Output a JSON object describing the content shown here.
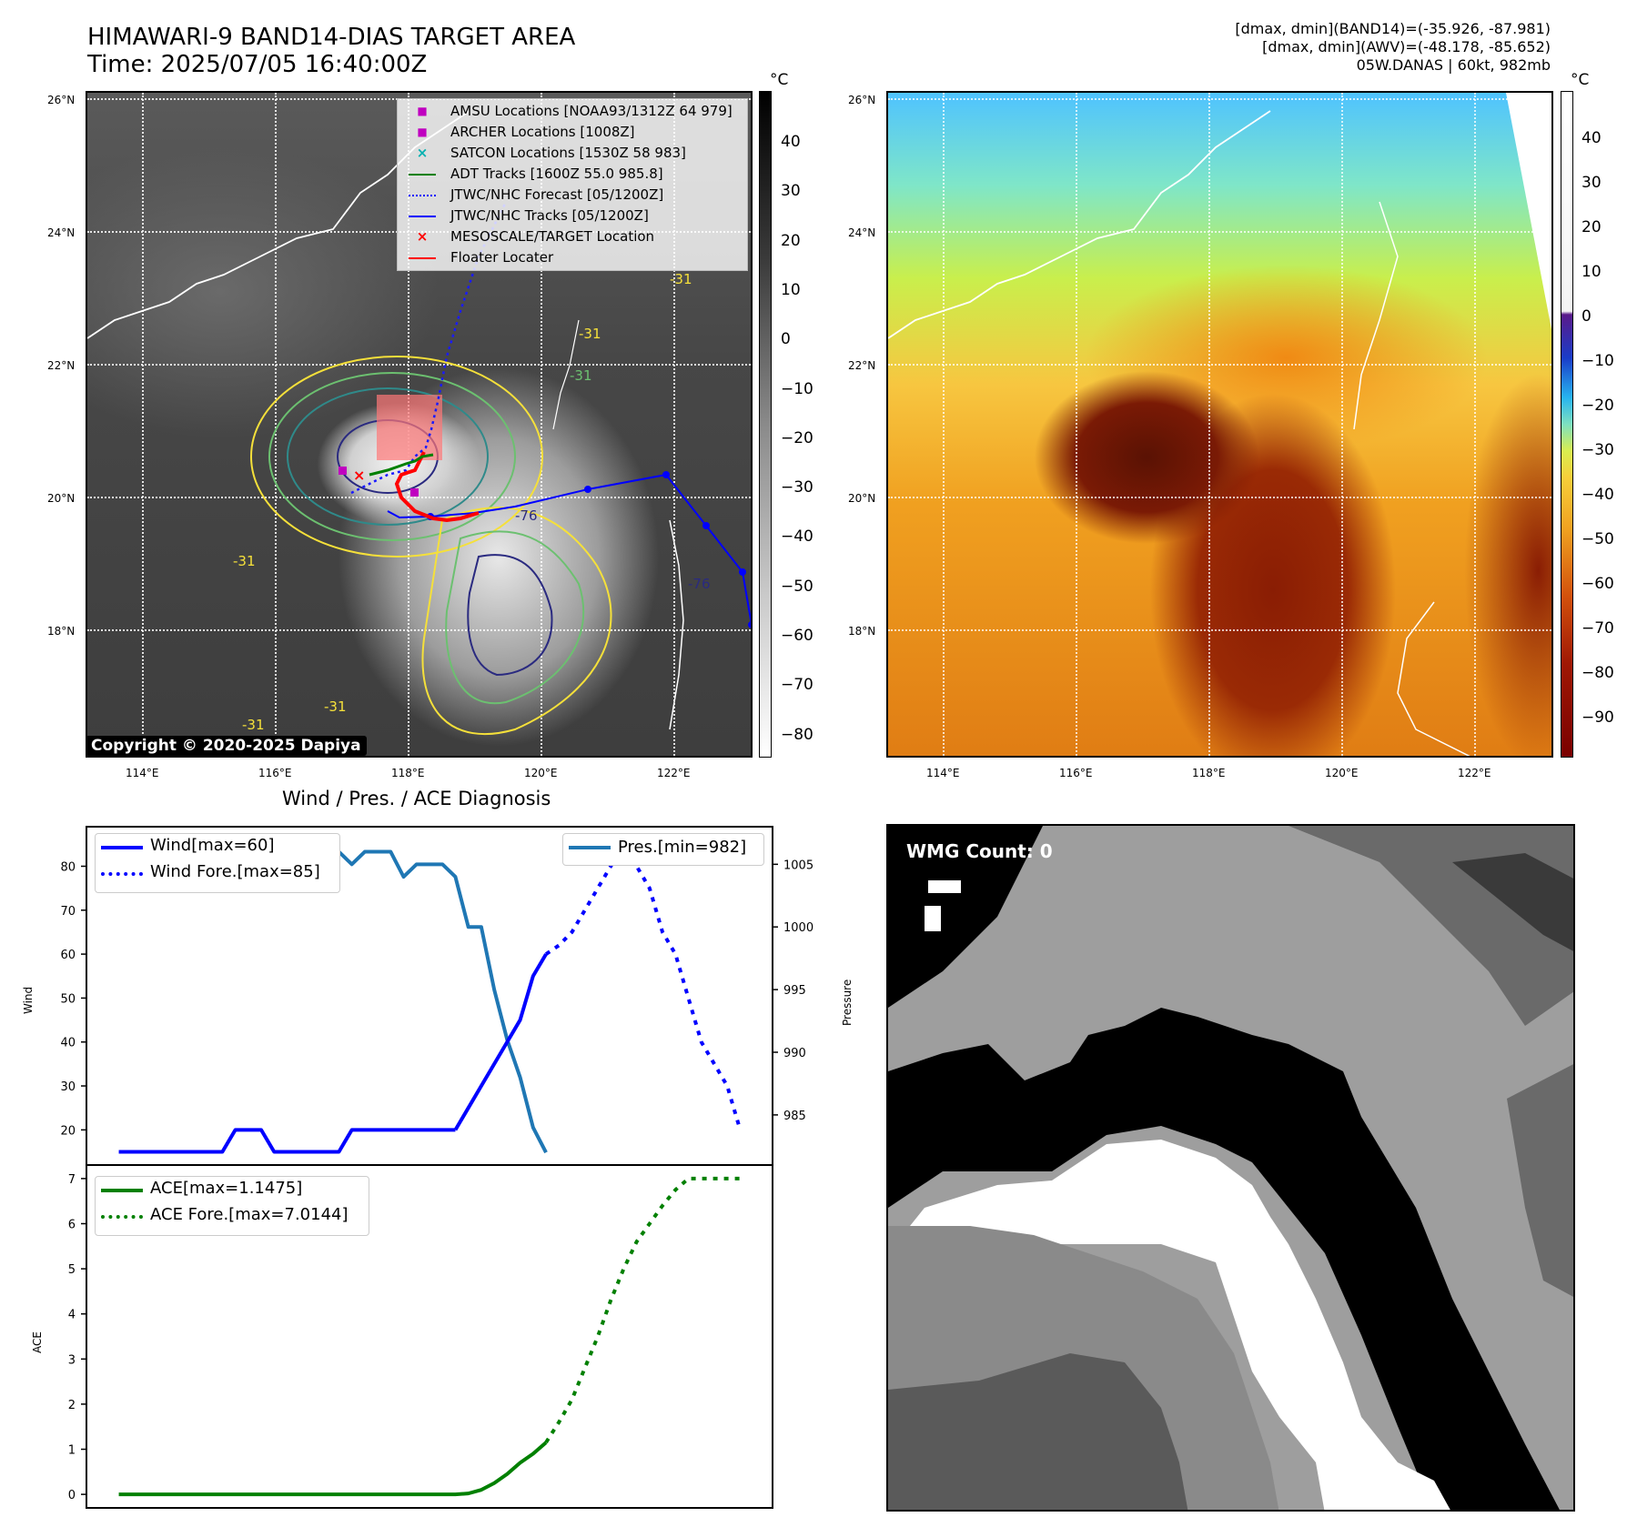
{
  "header": {
    "title_line1": "HIMAWARI-9 BAND14-DIAS TARGET AREA",
    "title_line2": "Time: 2025/07/05 16:40:00Z",
    "info_line1": "[dmax, dmin](BAND14)=(-35.926, -87.981)",
    "info_line2": "[dmax, dmin](AWV)=(-48.178, -85.652)",
    "info_line3": "05W.DANAS | 60kt, 982mb"
  },
  "maps": {
    "lat_labels": [
      "26°N",
      "24°N",
      "22°N",
      "20°N",
      "18°N"
    ],
    "lon_labels": [
      "114°E",
      "116°E",
      "118°E",
      "120°E",
      "122°E"
    ],
    "contour_label": "-31",
    "contour_label_inner": "-76",
    "copyright": "Copyright © 2020-2025 Dapiya"
  },
  "colorbar_ir": {
    "unit": "°C",
    "ticks": [
      "40",
      "30",
      "20",
      "10",
      "0",
      "−10",
      "−20",
      "−30",
      "−40",
      "−50",
      "−60",
      "−70",
      "−80"
    ]
  },
  "colorbar_bd": {
    "unit": "°C",
    "ticks": [
      "40",
      "30",
      "20",
      "10",
      "0",
      "−10",
      "−20",
      "−30",
      "−40",
      "−50",
      "−60",
      "−70",
      "−80",
      "−90"
    ]
  },
  "legend_ir": {
    "items": [
      {
        "label": "AMSU Locations [NOAA93/1312Z 64 979]",
        "symbol": "■",
        "color": "#c000c0"
      },
      {
        "label": "ARCHER Locations [1008Z]",
        "symbol": "■",
        "color": "#c000c0"
      },
      {
        "label": "SATCON Locations [1530Z 58 983]",
        "symbol": "×",
        "color": "#00b0b0"
      },
      {
        "label": "ADT Tracks [1600Z 55.0 985.8]",
        "symbol": "line",
        "color": "#008000"
      },
      {
        "label": "JTWC/NHC Forecast [05/1200Z]",
        "symbol": "dotted",
        "color": "#0000ff"
      },
      {
        "label": "JTWC/NHC Tracks [05/1200Z]",
        "symbol": "line-dot",
        "color": "#0000ff"
      },
      {
        "label": "MESOSCALE/TARGET Location",
        "symbol": "×",
        "color": "#ff0000"
      },
      {
        "label": "Floater Locater",
        "symbol": "line",
        "color": "#ff0000"
      }
    ]
  },
  "wmg": {
    "count_label": "WMG Count: 0"
  },
  "diagnosis": {
    "title": "Wind / Pres. / ACE Diagnosis",
    "wind_ylabel": "Wind",
    "pres_ylabel": "Pressure",
    "ace_ylabel": "ACE",
    "legend_wind": "Wind[max=60]",
    "legend_wind_fore": "Wind Fore.[max=85]",
    "legend_pres": "Pres.[min=982]",
    "legend_ace": "ACE[max=1.1475]",
    "legend_ace_fore": "ACE Fore.[max=7.0144]",
    "colors": {
      "wind": "#0000ff",
      "pres": "#1f77b4",
      "ace": "#008000"
    }
  },
  "chart_data": [
    {
      "type": "line",
      "title": "Wind / Pres. / ACE Diagnosis",
      "ylabel": "Wind",
      "ylim": [
        12,
        89
      ],
      "yticks": [
        20,
        30,
        40,
        50,
        60,
        70,
        80
      ],
      "series": [
        {
          "name": "Wind[max=60]",
          "style": "solid",
          "x": [
            0,
            1,
            2,
            3,
            4,
            5,
            6,
            7,
            8,
            9,
            10,
            11,
            12,
            13,
            14,
            15,
            16,
            17,
            18,
            19,
            20,
            21,
            22,
            23,
            24,
            25,
            26
          ],
          "values": [
            15,
            15,
            15,
            15,
            15,
            15,
            15,
            15,
            15,
            20,
            20,
            20,
            15,
            15,
            15,
            15,
            15,
            15,
            20,
            20,
            20,
            20,
            20,
            20,
            20,
            20,
            20
          ]
        },
        {
          "name": "Wind[max=60]",
          "style": "solid",
          "x": [
            26,
            27,
            28,
            29,
            30,
            31,
            32,
            33
          ],
          "values": [
            20,
            25,
            30,
            35,
            40,
            45,
            55,
            60
          ]
        },
        {
          "name": "Wind Fore.[max=85]",
          "style": "dotted",
          "x": [
            33,
            34,
            35,
            36,
            37,
            38,
            39,
            40,
            41,
            42,
            43,
            44,
            45,
            46,
            47,
            48
          ],
          "values": [
            60,
            62,
            65,
            70,
            75,
            80,
            85,
            80,
            75,
            65,
            60,
            50,
            40,
            35,
            30,
            20
          ]
        }
      ]
    },
    {
      "type": "line",
      "ylabel": "Pressure",
      "ylim": [
        981,
        1008
      ],
      "yticks": [
        985,
        990,
        995,
        1000,
        1005
      ],
      "series": [
        {
          "name": "Pres.[min=982]",
          "x": [
            0,
            1,
            2,
            3,
            4,
            5,
            6,
            7,
            8,
            9,
            10,
            11,
            12,
            13,
            14,
            15,
            16,
            17,
            18,
            19,
            20,
            21,
            22,
            23,
            24,
            25,
            26,
            27,
            28,
            29,
            30,
            31,
            32,
            33
          ],
          "values": [
            1007,
            1007,
            1007,
            1007,
            1007,
            1004,
            1004,
            1004,
            1004,
            1004,
            1004,
            1004,
            1004,
            1005,
            1005,
            1005,
            1005,
            1006,
            1005,
            1006,
            1006,
            1006,
            1004,
            1005,
            1005,
            1005,
            1004,
            1000,
            1000,
            995,
            991,
            988,
            984,
            982
          ]
        }
      ]
    },
    {
      "type": "line",
      "ylabel": "ACE",
      "ylim": [
        -0.3,
        7.3
      ],
      "yticks": [
        0,
        1,
        2,
        3,
        4,
        5,
        6,
        7
      ],
      "series": [
        {
          "name": "ACE[max=1.1475]",
          "style": "solid",
          "x": [
            0,
            26,
            27,
            28,
            29,
            30,
            31,
            32,
            33
          ],
          "values": [
            0,
            0,
            0.02,
            0.1,
            0.25,
            0.45,
            0.7,
            0.9,
            1.15
          ]
        },
        {
          "name": "ACE Fore.[max=7.0144]",
          "style": "dotted",
          "x": [
            33,
            34,
            35,
            36,
            37,
            38,
            39,
            40,
            41,
            42,
            43,
            44,
            45,
            46,
            47,
            48
          ],
          "values": [
            1.15,
            1.6,
            2.1,
            2.8,
            3.5,
            4.3,
            5.0,
            5.6,
            6.0,
            6.4,
            6.75,
            7.0,
            7.0,
            7.0,
            7.0,
            7.0
          ]
        }
      ]
    }
  ]
}
